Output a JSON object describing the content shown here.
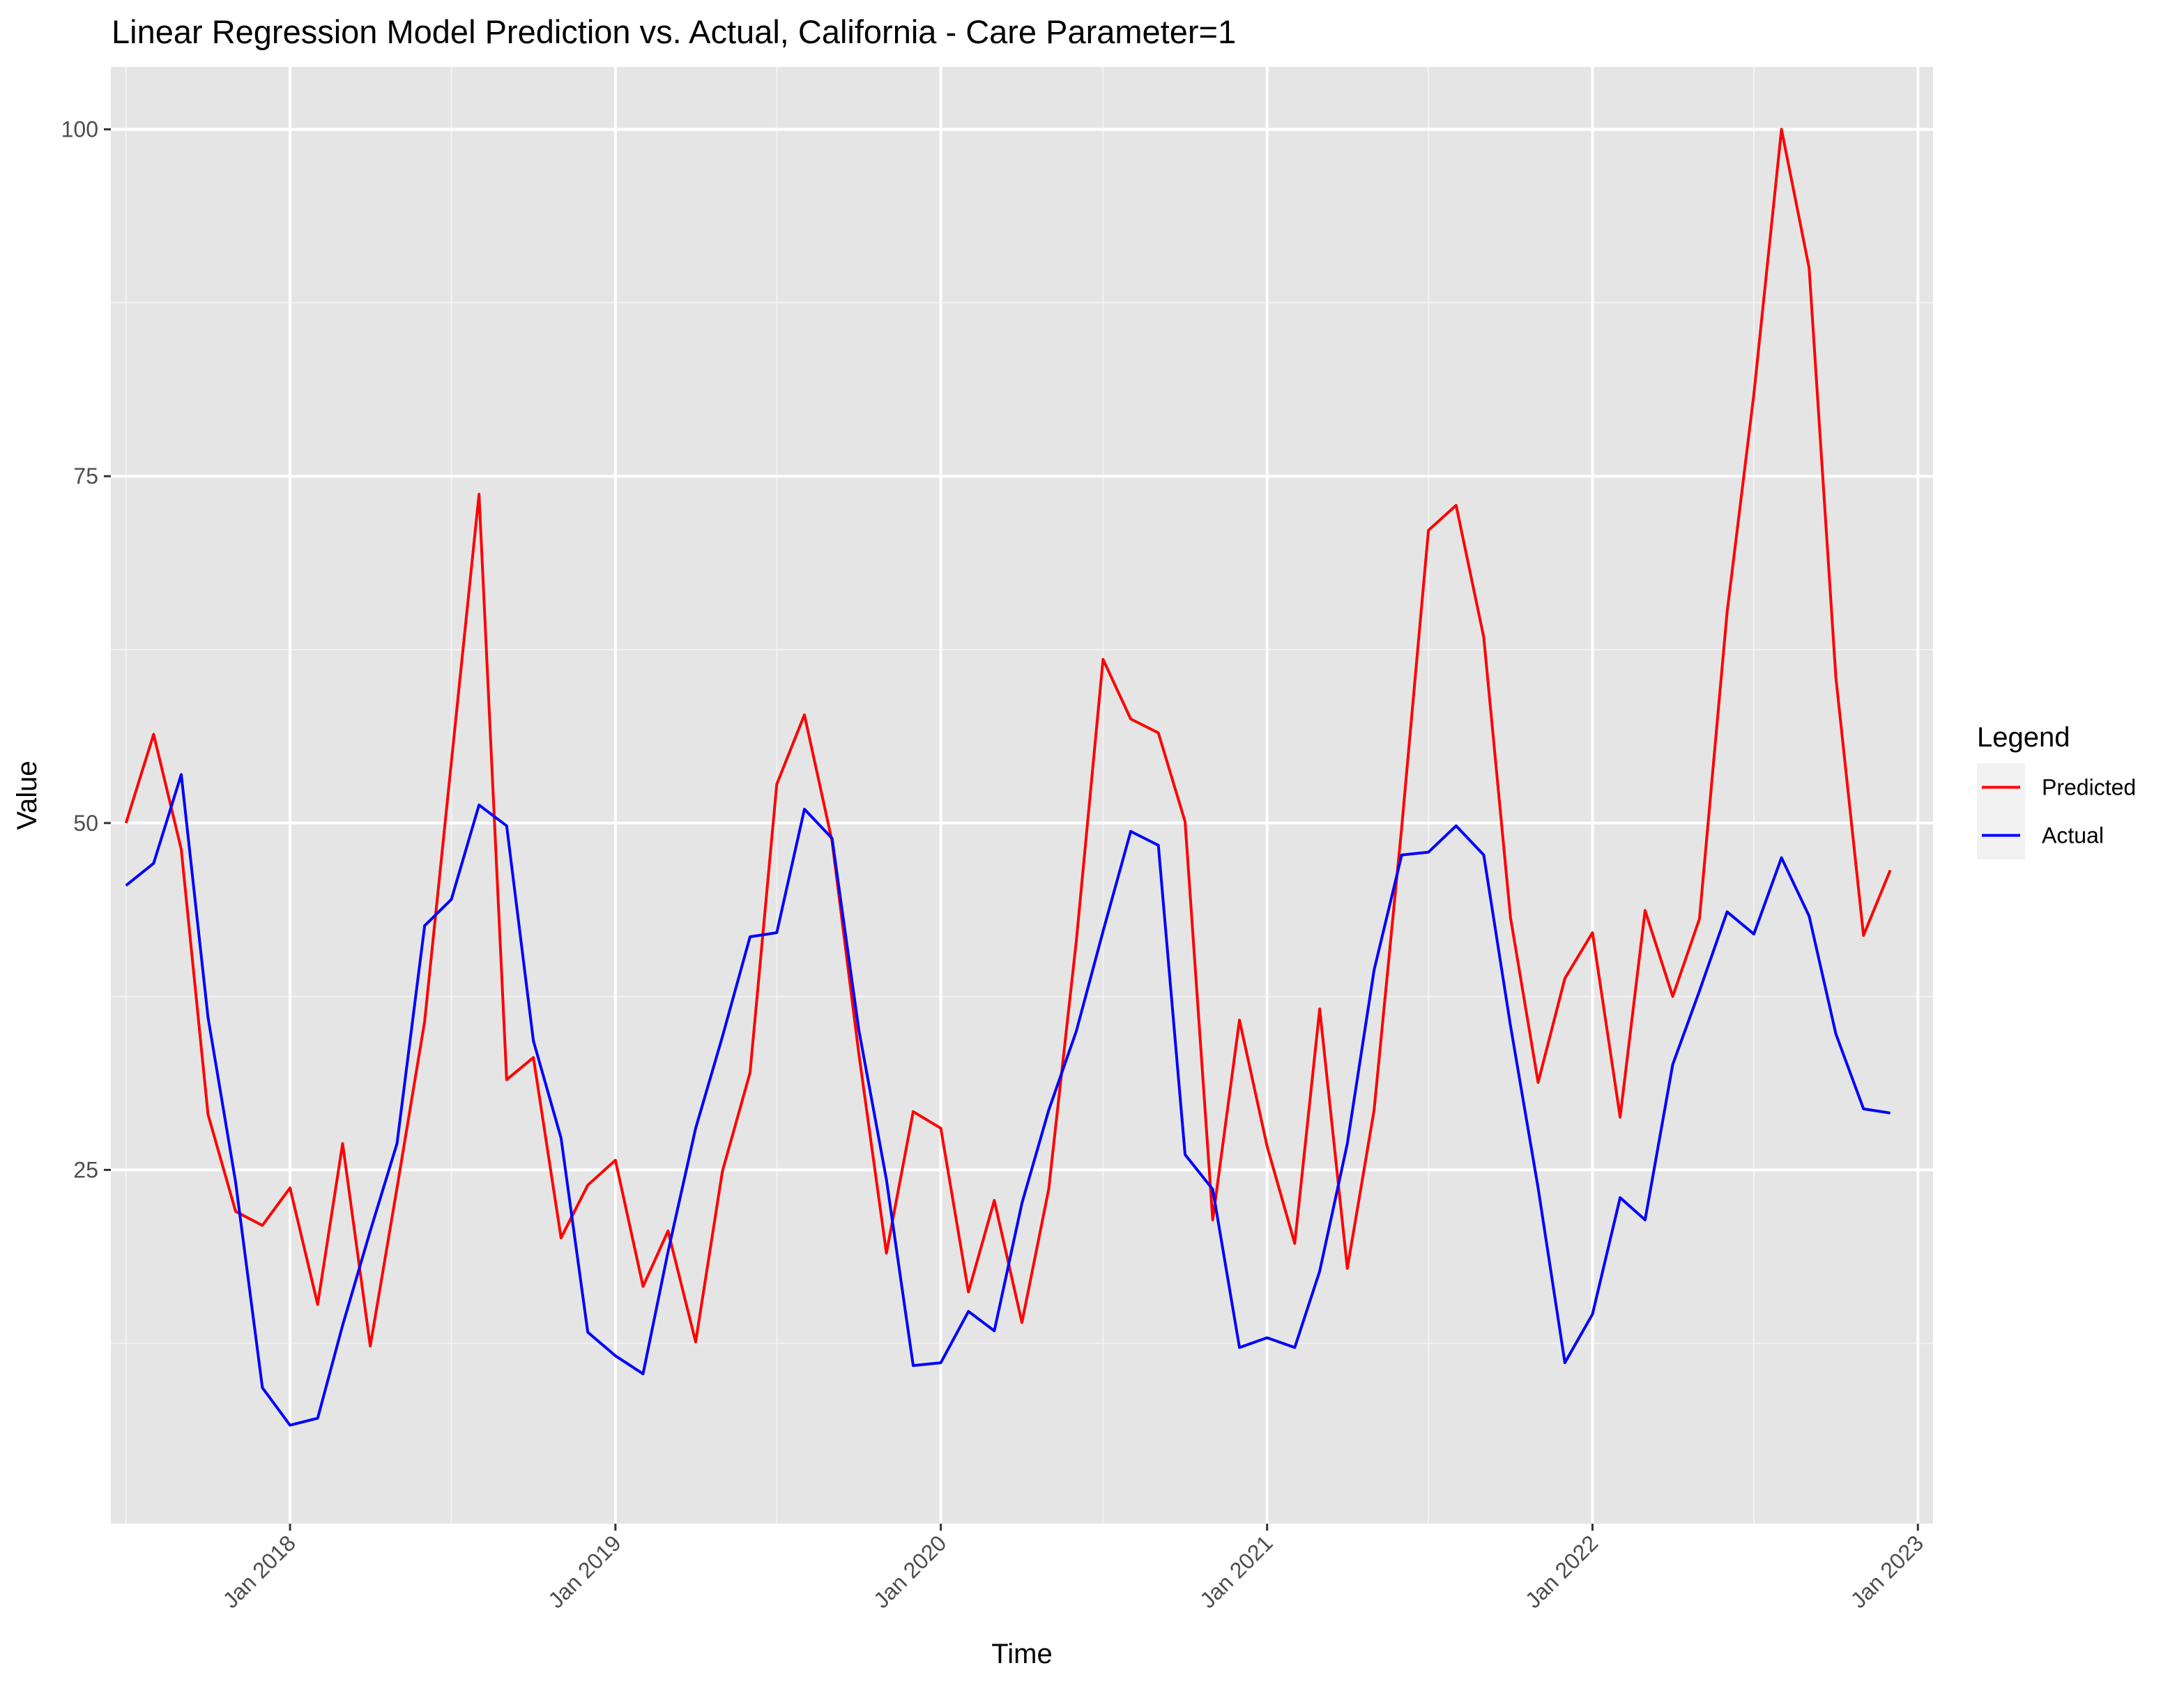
{
  "chart_data": {
    "type": "line",
    "title": "Linear Regression Model Prediction vs. Actual, California - Care Parameter=1",
    "xlabel": "Time",
    "ylabel": "Value",
    "x_start": "2017-07",
    "x_frequency": "monthly",
    "xlim": [
      "2017-06-14",
      "2023-01-18"
    ],
    "ylim": [
      -0.5,
      104.5
    ],
    "y_ticks": [
      25,
      50,
      75,
      100
    ],
    "x_ticks": [
      {
        "date": "2018-01-01",
        "label": "Jan 2018"
      },
      {
        "date": "2019-01-01",
        "label": "Jan 2019"
      },
      {
        "date": "2020-01-01",
        "label": "Jan 2020"
      },
      {
        "date": "2021-01-01",
        "label": "Jan 2021"
      },
      {
        "date": "2022-01-01",
        "label": "Jan 2022"
      },
      {
        "date": "2023-01-01",
        "label": "Jan 2023"
      }
    ],
    "x_minor_ticks": [
      "2017-07-01",
      "2018-07-01",
      "2019-07-01",
      "2020-07-01",
      "2021-07-01",
      "2022-07-01"
    ],
    "y_minor_ticks": [
      12.5,
      37.5,
      62.5,
      87.5
    ],
    "grid": true,
    "background_color": "#e5e5e5",
    "legend": {
      "title": "Legend",
      "placement": "right",
      "entries": [
        "Predicted",
        "Actual"
      ]
    },
    "series": [
      {
        "name": "Predicted",
        "color": "#ff0000",
        "values": [
          50.0,
          56.4,
          48.1,
          29.0,
          22.0,
          21.0,
          23.7,
          15.3,
          26.9,
          12.3,
          23.7,
          35.7,
          54.4,
          73.7,
          31.5,
          33.1,
          20.1,
          23.9,
          25.7,
          16.6,
          20.6,
          12.6,
          24.9,
          32.0,
          52.8,
          57.8,
          48.7,
          33.4,
          19.0,
          29.2,
          28.0,
          16.2,
          22.8,
          14.0,
          23.6,
          41.5,
          61.8,
          57.5,
          56.5,
          50.1,
          21.4,
          35.8,
          26.7,
          19.7,
          36.6,
          17.9,
          29.3,
          49.7,
          71.1,
          72.9,
          63.4,
          43.2,
          31.3,
          38.8,
          42.1,
          28.8,
          43.7,
          37.5,
          43.1,
          65.2,
          80.9,
          100.0,
          90.0,
          60.5,
          41.9,
          46.6
        ]
      },
      {
        "name": "Actual",
        "color": "#0000ff",
        "values": [
          45.5,
          47.1,
          53.5,
          36.0,
          24.1,
          9.3,
          6.6,
          7.1,
          13.8,
          20.6,
          26.9,
          42.6,
          44.5,
          51.3,
          49.8,
          34.3,
          27.3,
          13.3,
          11.6,
          10.3,
          19.1,
          28.0,
          34.6,
          41.8,
          42.1,
          51.0,
          48.9,
          35.1,
          24.3,
          10.9,
          11.1,
          14.8,
          13.4,
          22.6,
          29.3,
          35.0,
          42.2,
          49.4,
          48.4,
          26.1,
          23.6,
          12.2,
          12.9,
          12.2,
          17.7,
          26.9,
          39.4,
          47.7,
          47.9,
          49.8,
          47.7,
          35.4,
          23.7,
          11.1,
          14.6,
          23.0,
          21.4,
          32.6,
          37.9,
          43.6,
          42.0,
          47.5,
          43.3,
          34.8,
          29.4,
          29.1
        ]
      }
    ]
  }
}
